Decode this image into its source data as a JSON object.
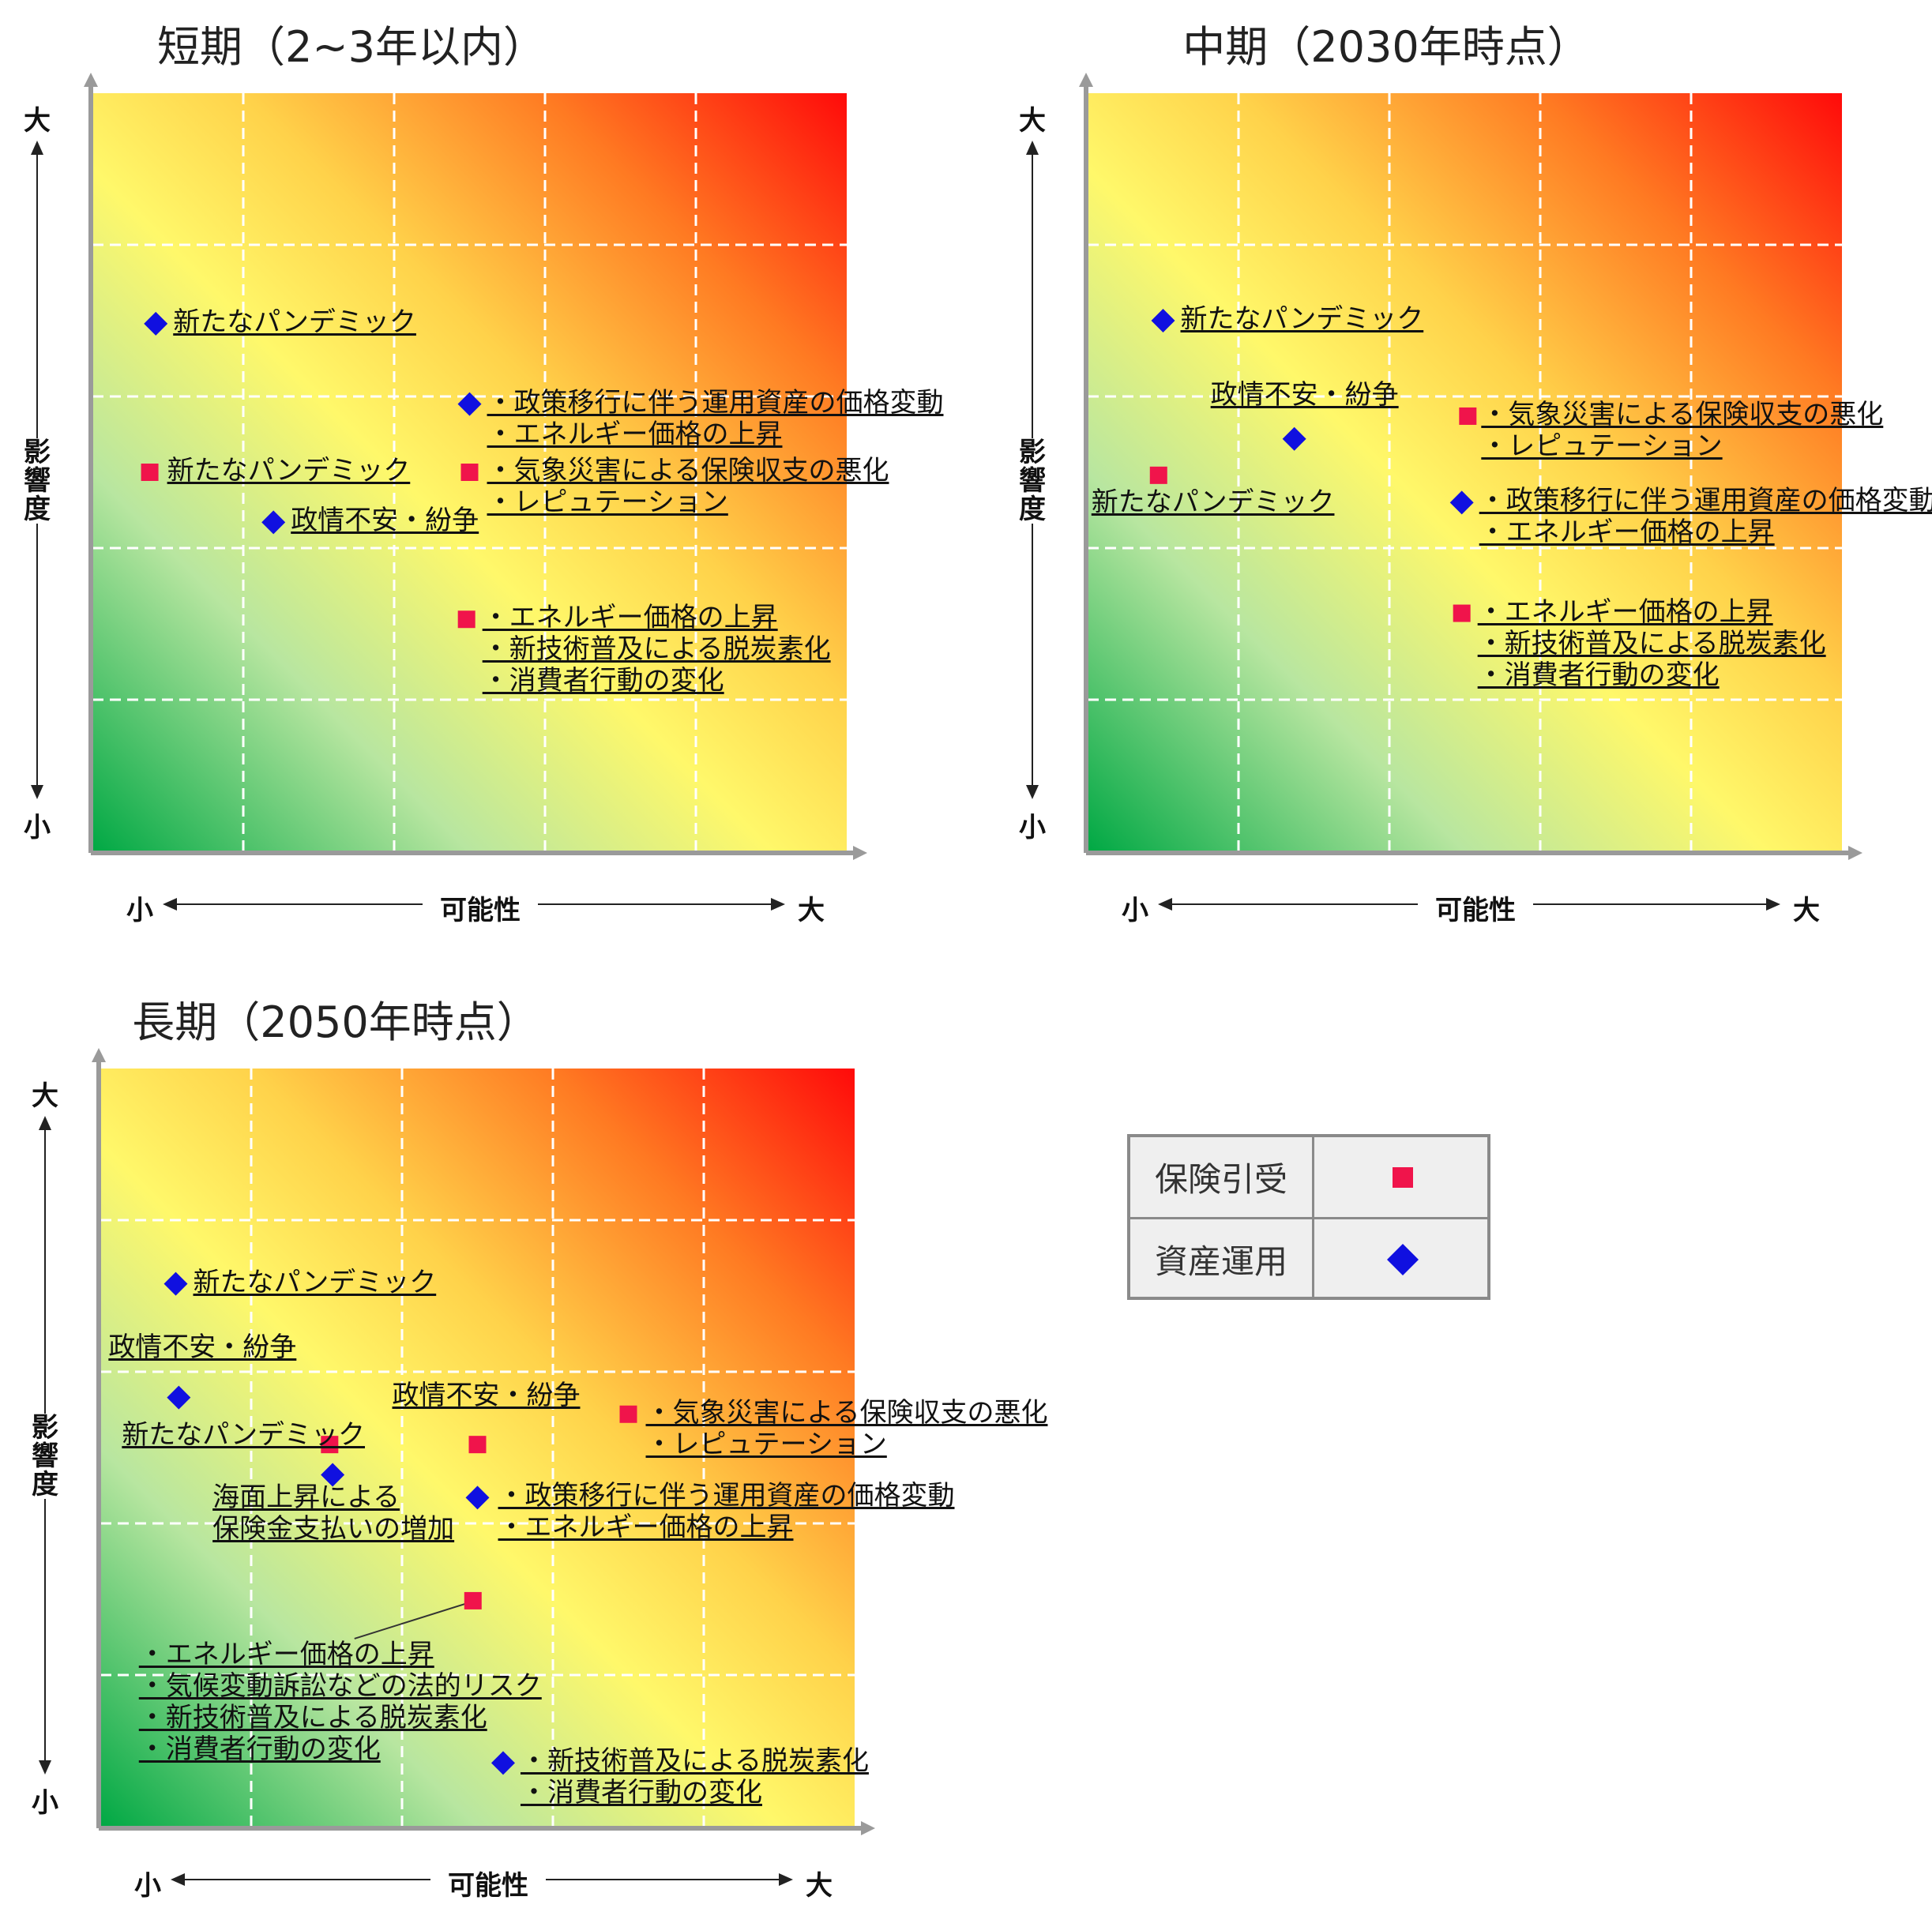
{
  "colors": {
    "underwriting_marker": "#f0144b",
    "investment_marker": "#1010e0",
    "grid_line": "#ffffff",
    "axis_line": "#9a9a9a"
  },
  "axes": {
    "x_label": "可能性",
    "y_label": "影響度",
    "low": "小",
    "high": "大"
  },
  "legend": {
    "items": [
      {
        "label": "保険引受",
        "marker": "square",
        "color": "#f0144b"
      },
      {
        "label": "資産運用",
        "marker": "diamond",
        "color": "#1010e0"
      }
    ]
  },
  "chart_data": [
    {
      "type": "scatter",
      "id": "short",
      "title": "短期（2~3年以内）",
      "xlabel": "可能性",
      "ylabel": "影響度",
      "xlim": [
        0,
        5
      ],
      "ylim": [
        0,
        5
      ],
      "grid": true,
      "points": [
        {
          "series": "資産運用",
          "x": 0.42,
          "y": 3.48,
          "labels": [
            "新たなパンデミック"
          ]
        },
        {
          "series": "資産運用",
          "x": 2.5,
          "y": 2.95,
          "labels": [
            "・政策移行に伴う運用資産の価格変動",
            "・エネルギー価格の上昇"
          ]
        },
        {
          "series": "保険引受",
          "x": 0.38,
          "y": 2.5,
          "labels": [
            "新たなパンデミック"
          ]
        },
        {
          "series": "保険引受",
          "x": 2.5,
          "y": 2.5,
          "labels": [
            "・気象災害による保険収支の悪化",
            "・レピュテーション"
          ]
        },
        {
          "series": "資産運用",
          "x": 1.2,
          "y": 2.17,
          "labels": [
            "政情不安・紛争"
          ]
        },
        {
          "series": "保険引受",
          "x": 2.48,
          "y": 1.53,
          "labels": [
            "・エネルギー価格の上昇",
            "・新技術普及による脱炭素化",
            "・消費者行動の変化"
          ]
        }
      ]
    },
    {
      "type": "scatter",
      "id": "mid",
      "title": "中期（2030年時点）",
      "xlabel": "可能性",
      "ylabel": "影響度",
      "xlim": [
        0,
        5
      ],
      "ylim": [
        0,
        5
      ],
      "grid": true,
      "points": [
        {
          "series": "資産運用",
          "x": 0.5,
          "y": 3.5,
          "labels": [
            "新たなパンデミック"
          ]
        },
        {
          "series": "資産運用",
          "x": 1.37,
          "y": 2.72,
          "labels": [
            "政情不安・紛争"
          ]
        },
        {
          "series": "保険引受",
          "x": 0.47,
          "y": 2.48,
          "labels": [
            "新たなパンデミック"
          ]
        },
        {
          "series": "保険引受",
          "x": 2.52,
          "y": 2.87,
          "labels": [
            "・気象災害による保険収支の悪化",
            "・レピュテーション"
          ]
        },
        {
          "series": "資産運用",
          "x": 2.48,
          "y": 2.3,
          "labels": [
            "・政策移行に伴う運用資産の価格変動",
            "・エネルギー価格の上昇"
          ]
        },
        {
          "series": "保険引受",
          "x": 2.48,
          "y": 1.57,
          "labels": [
            "・エネルギー価格の上昇",
            "・新技術普及による脱炭素化",
            "・消費者行動の変化"
          ]
        }
      ]
    },
    {
      "type": "scatter",
      "id": "long",
      "title": "長期（2050年時点）",
      "xlabel": "可能性",
      "ylabel": "影響度",
      "xlim": [
        0,
        5
      ],
      "ylim": [
        0,
        5
      ],
      "grid": true,
      "points": [
        {
          "series": "資産運用",
          "x": 0.5,
          "y": 3.58,
          "labels": [
            "新たなパンデミック"
          ]
        },
        {
          "series": "資産運用",
          "x": 0.52,
          "y": 2.83,
          "labels": [
            "政情不安・紛争"
          ]
        },
        {
          "series": "保険引受",
          "x": 1.52,
          "y": 2.52,
          "labels": [
            "新たなパンデミック"
          ]
        },
        {
          "series": "資産運用",
          "x": 1.54,
          "y": 2.32,
          "labels": [
            "海面上昇による",
            "保険金支払いの増加"
          ]
        },
        {
          "series": "保険引受",
          "x": 2.5,
          "y": 2.52,
          "labels": [
            "政情不安・紛争"
          ]
        },
        {
          "series": "保険引受",
          "x": 3.5,
          "y": 2.72,
          "labels": [
            "・気象災害による保険収支の悪化",
            "・レピュテーション"
          ]
        },
        {
          "series": "資産運用",
          "x": 2.5,
          "y": 2.17,
          "labels": [
            "・政策移行に伴う運用資産の価格変動",
            "・エネルギー価格の上昇"
          ]
        },
        {
          "series": "保険引受",
          "x": 2.47,
          "y": 1.49,
          "labels": [
            "・エネルギー価格の上昇",
            "・気候変動訴訟などの法的リスク",
            "・新技術普及による脱炭素化",
            "・消費者行動の変化"
          ]
        },
        {
          "series": "資産運用",
          "x": 2.67,
          "y": 0.42,
          "labels": [
            "・新技術普及による脱炭素化",
            "・消費者行動の変化"
          ]
        }
      ]
    }
  ]
}
